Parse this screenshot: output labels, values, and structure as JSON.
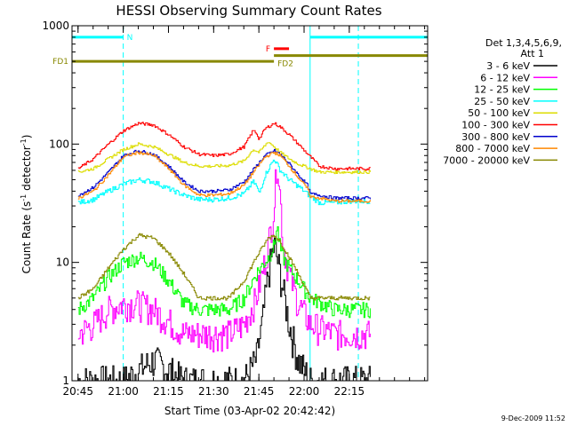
{
  "chart_data": {
    "type": "line",
    "title": "HESSI Observing Summary Count Rates",
    "xlabel": "Start Time (03-Apr-02 20:42:42)",
    "ylabel_main": "Count Rate (s",
    "ylabel_sup1": "-1",
    "ylabel_mid": " detector",
    "ylabel_sup2": "-1",
    "ylabel_end": ")",
    "yscale": "log",
    "ylim": [
      1,
      1000
    ],
    "xlim_minutes": [
      -17,
      101
    ],
    "x_ticks": [
      {
        "min": -15,
        "label": "20:45"
      },
      {
        "min": 0,
        "label": "21:00"
      },
      {
        "min": 15,
        "label": "21:15"
      },
      {
        "min": 30,
        "label": "21:30"
      },
      {
        "min": 45,
        "label": "21:45"
      },
      {
        "min": 60,
        "label": "22:00"
      },
      {
        "min": 75,
        "label": "22:15"
      }
    ],
    "y_ticks": [
      {
        "value": 1,
        "label": "1"
      },
      {
        "value": 10,
        "label": "10"
      },
      {
        "value": 100,
        "label": "100"
      },
      {
        "value": 1000,
        "label": "1000"
      }
    ],
    "legend_header_1": "Det 1,3,4,5,6,9,",
    "legend_header_2": "Att 1",
    "legend_position": "right",
    "series": [
      {
        "name": "3 - 6 keV",
        "color": "#000000",
        "x": [
          -15,
          0,
          10,
          20,
          30,
          40,
          44,
          46,
          48,
          50,
          52,
          55,
          58,
          62,
          68,
          75,
          82
        ],
        "y": [
          1,
          1,
          1.5,
          1,
          1,
          1,
          1.5,
          3,
          8,
          14,
          8,
          3,
          1.5,
          1,
          1,
          1,
          1
        ]
      },
      {
        "name": "6 - 12 keV",
        "color": "#ff00ff",
        "x": [
          -15,
          -10,
          -5,
          0,
          5,
          10,
          15,
          20,
          25,
          30,
          35,
          40,
          44,
          46,
          48,
          50,
          51,
          52,
          53,
          55,
          58,
          62,
          70,
          82
        ],
        "y": [
          2.5,
          3,
          4,
          4.5,
          4.5,
          4,
          3.2,
          2.5,
          2.5,
          2.5,
          2.5,
          3,
          5,
          8,
          14,
          30,
          80,
          35,
          14,
          8,
          4.5,
          3,
          2.5,
          2.5
        ]
      },
      {
        "name": "12 - 25 keV",
        "color": "#00ff00",
        "x": [
          -15,
          -10,
          -5,
          0,
          5,
          10,
          15,
          20,
          25,
          30,
          35,
          40,
          44,
          48,
          50,
          51,
          52,
          53,
          55,
          58,
          62,
          70,
          82
        ],
        "y": [
          4,
          5,
          7.5,
          10,
          11,
          10,
          7,
          4.5,
          4,
          4,
          4,
          5,
          8,
          11,
          14,
          20,
          13,
          11,
          9,
          7,
          5,
          4,
          4
        ]
      },
      {
        "name": "25 - 50 keV",
        "color": "#00ffff",
        "x": [
          -15,
          -10,
          -5,
          0,
          5,
          10,
          15,
          20,
          25,
          30,
          35,
          40,
          43,
          44,
          45,
          47,
          50,
          52,
          55,
          58,
          60,
          62,
          65,
          70,
          75,
          82
        ],
        "y": [
          32,
          34,
          40,
          46,
          50,
          48,
          42,
          37,
          34,
          34,
          35,
          38,
          48,
          45,
          38,
          55,
          75,
          60,
          50,
          44,
          40,
          36,
          32,
          32,
          33,
          33
        ]
      },
      {
        "name": "50 - 100 keV",
        "color": "#dddd00",
        "x": [
          -15,
          -10,
          -5,
          0,
          5,
          10,
          15,
          20,
          25,
          30,
          35,
          40,
          43,
          45,
          48,
          50,
          52,
          55,
          58,
          62,
          65,
          70,
          82
        ],
        "y": [
          58,
          62,
          75,
          90,
          100,
          95,
          82,
          70,
          65,
          65,
          66,
          72,
          90,
          85,
          105,
          95,
          85,
          75,
          68,
          62,
          58,
          58,
          58
        ]
      },
      {
        "name": "100 - 300 keV",
        "color": "#ff0000",
        "x": [
          -15,
          -10,
          -5,
          0,
          5,
          10,
          15,
          20,
          25,
          30,
          35,
          40,
          43,
          44,
          45,
          47,
          50,
          52,
          55,
          58,
          62,
          65,
          70,
          82
        ],
        "y": [
          62,
          75,
          100,
          130,
          150,
          145,
          120,
          95,
          82,
          80,
          82,
          95,
          130,
          125,
          110,
          135,
          150,
          140,
          120,
          100,
          78,
          65,
          62,
          62
        ]
      },
      {
        "name": "300 - 800 keV",
        "color": "#0000cc",
        "x": [
          -15,
          -10,
          -5,
          0,
          5,
          10,
          15,
          20,
          25,
          30,
          35,
          40,
          44,
          47,
          50,
          52,
          55,
          58,
          61,
          62,
          65,
          70,
          82
        ],
        "y": [
          37,
          43,
          58,
          80,
          88,
          82,
          65,
          48,
          40,
          40,
          41,
          48,
          65,
          80,
          88,
          82,
          68,
          55,
          45,
          38,
          37,
          35,
          35
        ]
      },
      {
        "name": "800 - 7000 keV",
        "color": "#ff8800",
        "x": [
          -15,
          -10,
          -5,
          0,
          5,
          10,
          15,
          20,
          25,
          30,
          35,
          40,
          44,
          47,
          50,
          52,
          55,
          58,
          61,
          62,
          65,
          70,
          82
        ],
        "y": [
          35,
          40,
          55,
          78,
          85,
          80,
          62,
          45,
          37,
          37,
          38,
          45,
          62,
          78,
          85,
          80,
          65,
          52,
          42,
          36,
          35,
          33,
          33
        ]
      },
      {
        "name": "7000 - 20000 keV",
        "color": "#888800",
        "x": [
          -15,
          -10,
          -5,
          0,
          5,
          10,
          15,
          20,
          25,
          30,
          35,
          40,
          44,
          48,
          50,
          52,
          55,
          58,
          62,
          70,
          82
        ],
        "y": [
          5,
          6,
          9,
          13,
          17,
          16,
          12,
          8,
          5,
          5,
          5,
          7,
          11,
          16,
          17,
          15,
          11,
          8,
          5,
          5,
          5
        ]
      }
    ],
    "vertical_lines_minutes": [
      0,
      62,
      78
    ],
    "annotations": [
      {
        "label": "N",
        "color": "#00ffff",
        "x_start": -17,
        "x_end": 0,
        "y": 800
      },
      {
        "label": "",
        "color": "#00ffff",
        "x_start": 62,
        "x_end": 101,
        "y": 800
      },
      {
        "label": "F",
        "color": "#ff0000",
        "x_start": 50,
        "x_end": 55,
        "y": 640
      },
      {
        "label": "FD1",
        "color": "#888800",
        "x_start": -17,
        "x_end": 50,
        "y": 500
      },
      {
        "label": "FD2",
        "color": "#888800",
        "x_start": 50,
        "x_end": 101,
        "y": 560
      }
    ],
    "footer_stamp": "9-Dec-2009 11:52"
  }
}
